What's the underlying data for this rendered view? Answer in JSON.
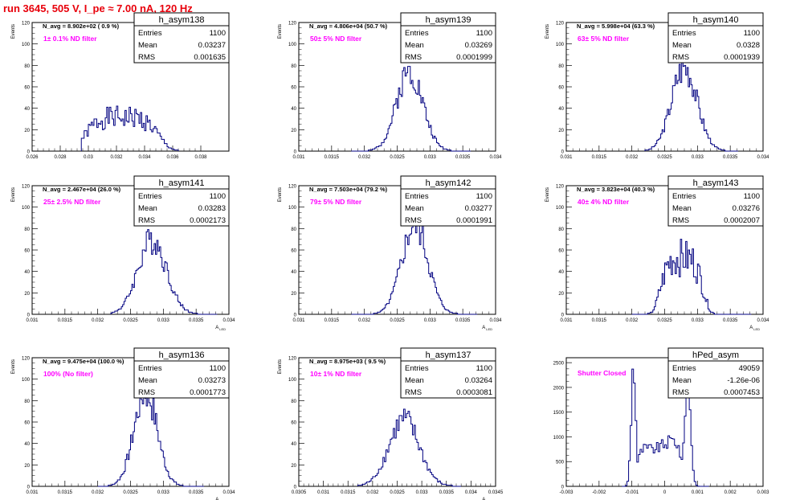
{
  "run_title": "run 3645,   505 V, I_pe ≈ 7.00 nA, 120 Hz",
  "colors": {
    "hist_line": "#000080",
    "annotation": "#ff00ff",
    "title": "#e8000b",
    "frame": "#000000"
  },
  "chart_data": [
    {
      "type": "histogram",
      "title": "h_asym138",
      "ylabel": "Events",
      "xlabel": "",
      "xlim": [
        0.026,
        0.04
      ],
      "ylim": [
        0,
        120
      ],
      "xticks": [
        0.026,
        0.028,
        0.03,
        0.032,
        0.034,
        0.036,
        0.038
      ],
      "xtick_labels": [
        "0.026",
        "0.028",
        "0.03",
        "0.032",
        "0.034",
        "0.036",
        "0.038"
      ],
      "yticks": [
        0,
        20,
        40,
        60,
        80,
        100,
        120
      ],
      "ytick_labels": [
        "0",
        "20",
        "40",
        "60",
        "80",
        "100",
        "120"
      ],
      "header": "N_avg = 8.902e+02 ( 0.9 %)",
      "annotation": "1± 0.1% ND filter",
      "stats": {
        "Entries": "1100",
        "Mean": "0.03237",
        "RMS": "0.001635"
      },
      "bin_width": 0.0001,
      "x": [
        0.0295,
        0.0364
      ],
      "mean": 0.03237,
      "rms": 0.001635,
      "shape": "flat",
      "peak": 38,
      "seed": 1
    },
    {
      "type": "histogram",
      "title": "h_asym139",
      "ylabel": "Events",
      "xlabel": "",
      "xlim": [
        0.031,
        0.034
      ],
      "ylim": [
        0,
        120
      ],
      "xticks": [
        0.031,
        0.0315,
        0.032,
        0.0325,
        0.033,
        0.0335,
        0.034
      ],
      "xtick_labels": [
        "0.031",
        "0.0315",
        "0.032",
        "0.0325",
        "0.033",
        "0.0335",
        "0.034"
      ],
      "yticks": [
        0,
        20,
        40,
        60,
        80,
        100,
        120
      ],
      "ytick_labels": [
        "0",
        "20",
        "40",
        "60",
        "80",
        "100",
        "120"
      ],
      "header": "N_avg = 4.806e+04 (50.7 %)",
      "annotation": "50± 5% ND filter",
      "stats": {
        "Entries": "1100",
        "Mean": "0.03269",
        "RMS": "0.0001999"
      },
      "bin_width": 2e-05,
      "x": [
        0.0318,
        0.0336
      ],
      "mean": 0.03269,
      "rms": 0.0001999,
      "shape": "gauss",
      "peak": 75,
      "seed": 2
    },
    {
      "type": "histogram",
      "title": "h_asym140",
      "ylabel": "Events",
      "xlabel": "",
      "xlim": [
        0.031,
        0.034
      ],
      "ylim": [
        0,
        120
      ],
      "xticks": [
        0.031,
        0.0315,
        0.032,
        0.0325,
        0.033,
        0.0335,
        0.034
      ],
      "xtick_labels": [
        "0.031",
        "0.0315",
        "0.032",
        "0.0325",
        "0.033",
        "0.0335",
        "0.034"
      ],
      "yticks": [
        0,
        20,
        40,
        60,
        80,
        100,
        120
      ],
      "ytick_labels": [
        "0",
        "20",
        "40",
        "60",
        "80",
        "100",
        "120"
      ],
      "header": "N_avg = 5.998e+04 (63.3 %)",
      "annotation": "63± 5% ND filter",
      "stats": {
        "Entries": "1100",
        "Mean": "0.0328",
        "RMS": "0.0001939"
      },
      "bin_width": 2e-05,
      "x": [
        0.0322,
        0.0336
      ],
      "mean": 0.0328,
      "rms": 0.0001939,
      "shape": "gauss",
      "peak": 79,
      "seed": 3
    },
    {
      "type": "histogram",
      "title": "h_asym141",
      "ylabel": "Events",
      "xlabel": "A_LED",
      "xlim": [
        0.031,
        0.034
      ],
      "ylim": [
        0,
        120
      ],
      "xticks": [
        0.031,
        0.0315,
        0.032,
        0.0325,
        0.033,
        0.0335,
        0.034
      ],
      "xtick_labels": [
        "0.031",
        "0.0315",
        "0.032",
        "0.0325",
        "0.033",
        "0.0335",
        "0.034"
      ],
      "yticks": [
        0,
        20,
        40,
        60,
        80,
        100,
        120
      ],
      "ytick_labels": [
        "0",
        "20",
        "40",
        "60",
        "80",
        "100",
        "120"
      ],
      "header": "N_avg = 2.467e+04 (26.0 %)",
      "annotation": "25± 2.5% ND filter",
      "stats": {
        "Entries": "1100",
        "Mean": "0.03283",
        "RMS": "0.0002173"
      },
      "bin_width": 2e-05,
      "x": [
        0.0322,
        0.0338
      ],
      "mean": 0.03283,
      "rms": 0.0002173,
      "shape": "gauss",
      "peak": 70,
      "seed": 4
    },
    {
      "type": "histogram",
      "title": "h_asym142",
      "ylabel": "Events",
      "xlabel": "A_LED",
      "xlim": [
        0.031,
        0.034
      ],
      "ylim": [
        0,
        120
      ],
      "xticks": [
        0.031,
        0.0315,
        0.032,
        0.0325,
        0.033,
        0.0335,
        0.034
      ],
      "xtick_labels": [
        "0.031",
        "0.0315",
        "0.032",
        "0.0325",
        "0.033",
        "0.0335",
        "0.034"
      ],
      "yticks": [
        0,
        20,
        40,
        60,
        80,
        100,
        120
      ],
      "ytick_labels": [
        "0",
        "20",
        "40",
        "60",
        "80",
        "100",
        "120"
      ],
      "header": "N_avg = 7.503e+04 (79.2 %)",
      "annotation": "79± 5% ND filter",
      "stats": {
        "Entries": "1100",
        "Mean": "0.03277",
        "RMS": "0.0001991"
      },
      "bin_width": 2e-05,
      "x": [
        0.0318,
        0.0337
      ],
      "mean": 0.03277,
      "rms": 0.0001991,
      "shape": "gauss",
      "peak": 84,
      "seed": 5
    },
    {
      "type": "histogram",
      "title": "h_asym143",
      "ylabel": "Events",
      "xlabel": "A_LED",
      "xlim": [
        0.031,
        0.034
      ],
      "ylim": [
        0,
        120
      ],
      "xticks": [
        0.031,
        0.0315,
        0.032,
        0.0325,
        0.033,
        0.0335,
        0.034
      ],
      "xtick_labels": [
        "0.031",
        "0.0315",
        "0.032",
        "0.0325",
        "0.033",
        "0.0335",
        "0.034"
      ],
      "yticks": [
        0,
        20,
        40,
        60,
        80,
        100,
        120
      ],
      "ytick_labels": [
        "0",
        "20",
        "40",
        "60",
        "80",
        "100",
        "120"
      ],
      "header": "N_avg = 3.823e+04 (40.3 %)",
      "annotation": "40± 4% ND filter",
      "stats": {
        "Entries": "1100",
        "Mean": "0.03276",
        "RMS": "0.0002007"
      },
      "bin_width": 2e-05,
      "x": [
        0.032,
        0.0338
      ],
      "mean": 0.03276,
      "rms": 0.0002007,
      "shape": "flat",
      "peak": 64,
      "seed": 6
    },
    {
      "type": "histogram",
      "title": "h_asym136",
      "ylabel": "Events",
      "xlabel": "A_LED",
      "xlim": [
        0.031,
        0.034
      ],
      "ylim": [
        0,
        120
      ],
      "xticks": [
        0.031,
        0.0315,
        0.032,
        0.0325,
        0.033,
        0.0335,
        0.034
      ],
      "xtick_labels": [
        "0.031",
        "0.0315",
        "0.032",
        "0.0325",
        "0.033",
        "0.0335",
        "0.034"
      ],
      "yticks": [
        0,
        20,
        40,
        60,
        80,
        100,
        120
      ],
      "ytick_labels": [
        "0",
        "20",
        "40",
        "60",
        "80",
        "100",
        "120"
      ],
      "header": "N_avg = 9.475e+04 (100.0 %)",
      "annotation": "100% (No filter)",
      "stats": {
        "Entries": "1100",
        "Mean": "0.03273",
        "RMS": "0.0001773"
      },
      "bin_width": 2e-05,
      "x": [
        0.032,
        0.0336
      ],
      "mean": 0.03273,
      "rms": 0.0001773,
      "shape": "gauss",
      "peak": 88,
      "seed": 7
    },
    {
      "type": "histogram",
      "title": "h_asym137",
      "ylabel": "Events",
      "xlabel": "A_LED",
      "xlim": [
        0.0305,
        0.0345
      ],
      "ylim": [
        0,
        120
      ],
      "xticks": [
        0.0305,
        0.031,
        0.0315,
        0.032,
        0.0325,
        0.033,
        0.0335,
        0.034,
        0.0345
      ],
      "xtick_labels": [
        "0.0305",
        "0.031",
        "0.0315",
        "0.032",
        "0.0325",
        "0.033",
        "0.0335",
        "0.034",
        "0.0345"
      ],
      "yticks": [
        0,
        20,
        40,
        60,
        80,
        100,
        120
      ],
      "ytick_labels": [
        "0",
        "20",
        "40",
        "60",
        "80",
        "100",
        "120"
      ],
      "header": "N_avg = 8.975e+03 ( 9.5 %)",
      "annotation": "10± 1% ND filter",
      "stats": {
        "Entries": "1100",
        "Mean": "0.03264",
        "RMS": "0.0003081"
      },
      "bin_width": 3e-05,
      "x": [
        0.0317,
        0.0338
      ],
      "mean": 0.03264,
      "rms": 0.0003081,
      "shape": "gauss",
      "peak": 62,
      "seed": 8
    },
    {
      "type": "histogram",
      "title": "hPed_asym",
      "ylabel": "",
      "xlabel": "",
      "xlim": [
        -0.003,
        0.003
      ],
      "ylim": [
        0,
        2600
      ],
      "xticks": [
        -0.003,
        -0.002,
        -0.001,
        0,
        0.001,
        0.002,
        0.003
      ],
      "xtick_labels": [
        "-0.003",
        "-0.002",
        "-0.001",
        "0",
        "0.001",
        "0.002",
        "0.003"
      ],
      "yticks": [
        0,
        500,
        1000,
        1500,
        2000,
        2500
      ],
      "ytick_labels": [
        "0",
        "500",
        "1000",
        "1500",
        "2000",
        "2500"
      ],
      "header": "",
      "annotation": "Shutter Closed",
      "stats": {
        "Entries": "49059",
        "Mean": "-1.26e-06",
        "RMS": "0.0007453"
      },
      "bin_width": 5e-05,
      "x": [
        -0.0013,
        0.0013
      ],
      "mean": 0,
      "rms": 0.0007453,
      "shape": "double",
      "peak": 2450,
      "seed": 9
    }
  ]
}
